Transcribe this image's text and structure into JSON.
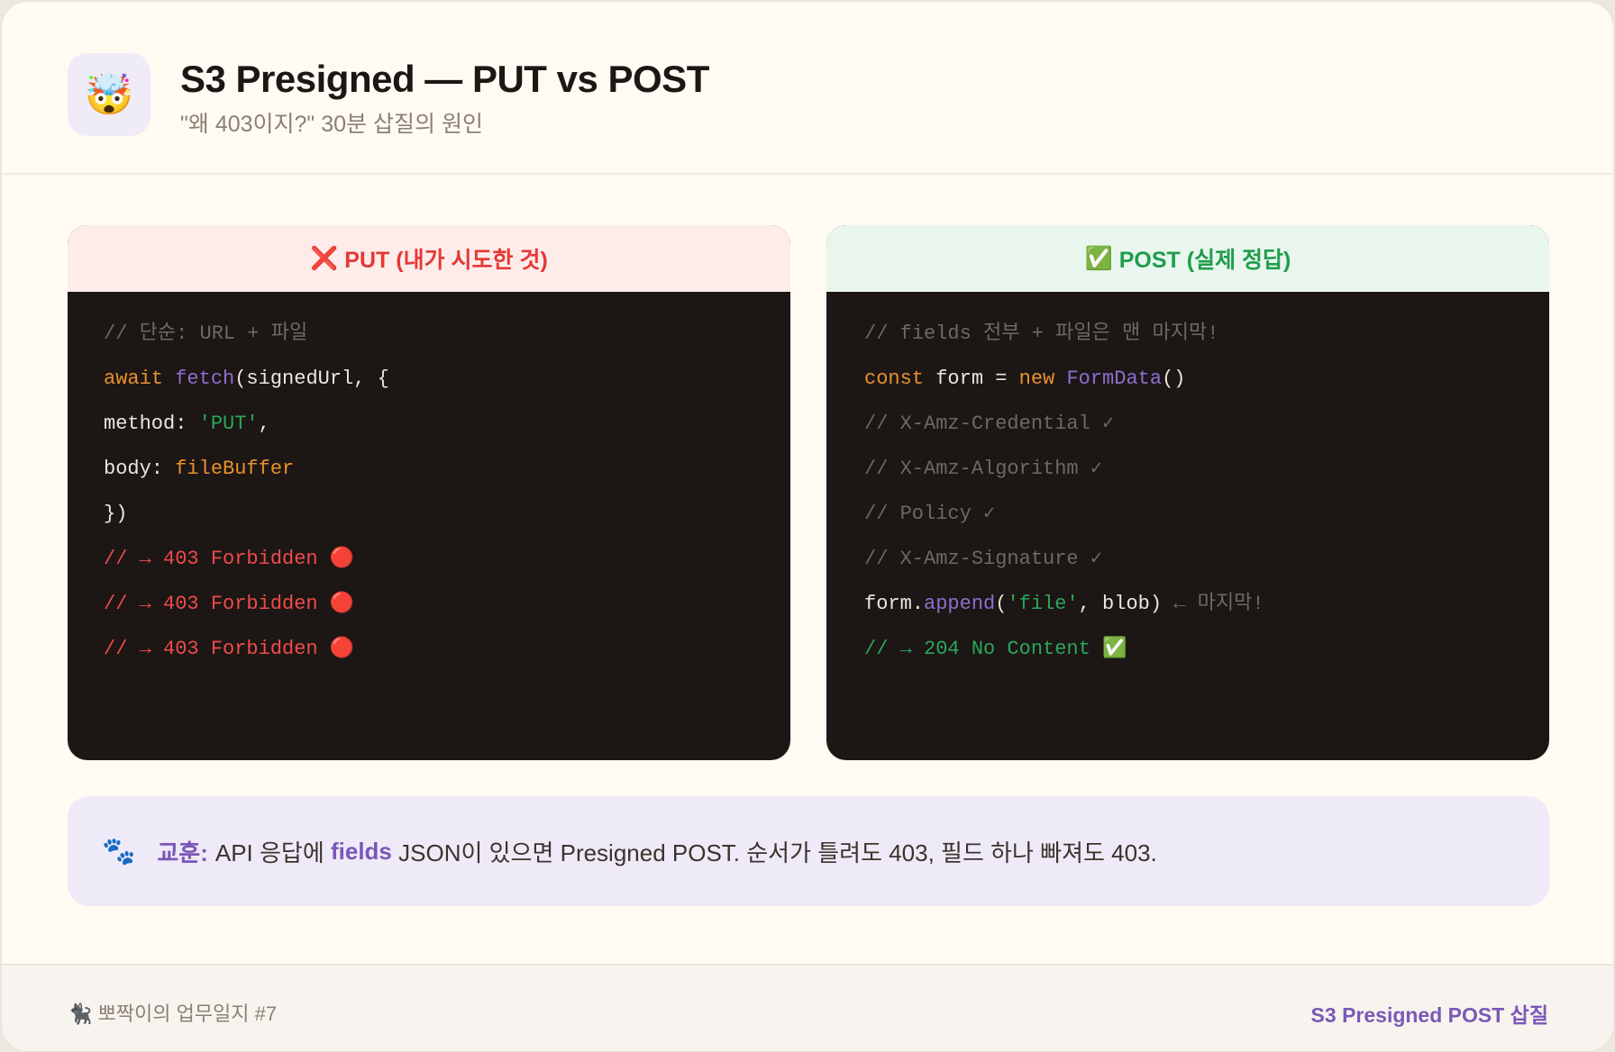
{
  "header": {
    "icon": "🤯",
    "icon_name": "exploding-head-icon",
    "title": "S3 Presigned — PUT vs POST",
    "subtitle": "\"왜 403이지?\" 30분 삽질의 원인"
  },
  "panels": {
    "put": {
      "icon": "❌",
      "label": "PUT (내가 시도한 것)",
      "color": "#e53935",
      "lines": [
        [
          {
            "t": "// 단순: URL + 파일",
            "c": "cm"
          }
        ],
        [
          {
            "t": "await ",
            "c": "kw"
          },
          {
            "t": "fetch",
            "c": "fn"
          },
          {
            "t": "(signedUrl, {",
            "c": "tx"
          }
        ],
        [
          {
            "t": "method: ",
            "c": "tx"
          },
          {
            "t": "'PUT'",
            "c": "str"
          },
          {
            "t": ",",
            "c": "tx"
          }
        ],
        [
          {
            "t": "body: ",
            "c": "tx"
          },
          {
            "t": "fileBuffer",
            "c": "kw"
          }
        ],
        [
          {
            "t": "})",
            "c": "tx"
          }
        ],
        [
          {
            "t": "// → 403 Forbidden 🔴",
            "c": "err"
          }
        ],
        [
          {
            "t": "// → 403 Forbidden 🔴",
            "c": "err"
          }
        ],
        [
          {
            "t": "// → 403 Forbidden 🔴",
            "c": "err"
          }
        ]
      ]
    },
    "post": {
      "icon": "✅",
      "label": "POST (실제 정답)",
      "color": "#1f9d4c",
      "lines": [
        [
          {
            "t": "// fields 전부 + 파일은 맨 마지막!",
            "c": "cm"
          }
        ],
        [
          {
            "t": "const ",
            "c": "kw"
          },
          {
            "t": "form = ",
            "c": "tx"
          },
          {
            "t": "new ",
            "c": "kw"
          },
          {
            "t": "FormData",
            "c": "fn"
          },
          {
            "t": "()",
            "c": "tx"
          }
        ],
        [
          {
            "t": "// X-Amz-Credential ✓",
            "c": "cm"
          }
        ],
        [
          {
            "t": "// X-Amz-Algorithm ✓",
            "c": "cm"
          }
        ],
        [
          {
            "t": "// Policy ✓",
            "c": "cm"
          }
        ],
        [
          {
            "t": "// X-Amz-Signature ✓",
            "c": "cm"
          }
        ],
        [
          {
            "t": "form.",
            "c": "tx"
          },
          {
            "t": "append",
            "c": "fn"
          },
          {
            "t": "(",
            "c": "tx"
          },
          {
            "t": "'file'",
            "c": "str"
          },
          {
            "t": ", blob) ",
            "c": "tx"
          },
          {
            "t": "← 마지막!",
            "c": "cm"
          }
        ],
        [
          {
            "t": "// → 204 No Content ✅",
            "c": "ok"
          }
        ]
      ]
    }
  },
  "lesson": {
    "icon": "🐾",
    "label": "교훈:",
    "text_before": "API 응답에 ",
    "highlight": "fields",
    "text_after": " JSON이 있으면 Presigned POST. 순서가 틀려도 403, 필드 하나 빠져도 403."
  },
  "footer": {
    "left": "🐈‍⬛ 뽀짝이의 업무일지 #7",
    "right": "S3 Presigned POST 삽질"
  }
}
